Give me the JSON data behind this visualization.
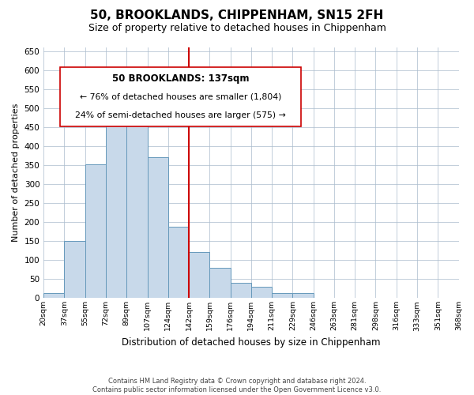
{
  "title": "50, BROOKLANDS, CHIPPENHAM, SN15 2FH",
  "subtitle": "Size of property relative to detached houses in Chippenham",
  "xlabel": "Distribution of detached houses by size in Chippenham",
  "ylabel": "Number of detached properties",
  "bar_color": "#c8d9ea",
  "bar_edge_color": "#6699bb",
  "background_color": "#ffffff",
  "grid_color": "#aabbcc",
  "annotation_box_edge": "#cc0000",
  "annotation_line_color": "#cc0000",
  "bin_labels": [
    "20sqm",
    "37sqm",
    "55sqm",
    "72sqm",
    "89sqm",
    "107sqm",
    "124sqm",
    "142sqm",
    "159sqm",
    "176sqm",
    "194sqm",
    "211sqm",
    "229sqm",
    "246sqm",
    "263sqm",
    "281sqm",
    "298sqm",
    "316sqm",
    "333sqm",
    "351sqm",
    "368sqm"
  ],
  "counts": [
    13,
    150,
    353,
    530,
    503,
    370,
    188,
    122,
    79,
    40,
    30,
    14,
    14,
    0,
    0,
    0,
    0,
    0,
    0,
    0
  ],
  "property_label": "50 BROOKLANDS: 137sqm",
  "pct_smaller": 76,
  "count_smaller": 1804,
  "pct_larger": 24,
  "count_larger": 575,
  "footer_line1": "Contains HM Land Registry data © Crown copyright and database right 2024.",
  "footer_line2": "Contains public sector information licensed under the Open Government Licence v3.0.",
  "ylim": [
    0,
    660
  ],
  "yticks": [
    0,
    50,
    100,
    150,
    200,
    250,
    300,
    350,
    400,
    450,
    500,
    550,
    600,
    650
  ],
  "property_line_x": 7
}
